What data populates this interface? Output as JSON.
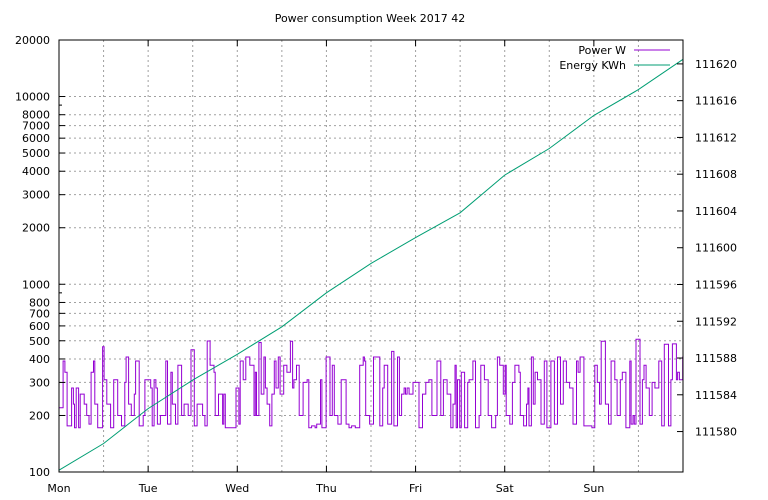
{
  "chart_data": {
    "type": "line",
    "title": "Power consumption Week 2017 42",
    "legend_position": "top-right",
    "grid": true,
    "x": {
      "range_days": [
        0,
        7
      ],
      "tick_labels": [
        "Mon",
        "Tue",
        "Wed",
        "Thu",
        "Fri",
        "Sat",
        "Sun"
      ]
    },
    "y_left": {
      "scale": "log",
      "range": [
        100,
        20000
      ],
      "ticks": [
        100,
        200,
        300,
        400,
        500,
        600,
        700,
        800,
        1000,
        2000,
        3000,
        4000,
        5000,
        6000,
        7000,
        8000,
        10000,
        20000
      ],
      "tick_labels": [
        "100",
        "200",
        "300",
        "400",
        "500",
        "600",
        "700",
        "800",
        "1000",
        "2000",
        "3000",
        "4000",
        "5000",
        "6000",
        "7000",
        "8000",
        "10000",
        "20000"
      ]
    },
    "y_right": {
      "scale": "linear",
      "range": [
        111575.6,
        111622.6
      ],
      "ticks": [
        111580,
        111584,
        111588,
        111592,
        111596,
        111600,
        111604,
        111608,
        111612,
        111616,
        111620
      ],
      "tick_labels": [
        "111580",
        "111584",
        "111588",
        "111592",
        "111596",
        "111600",
        "111604",
        "111608",
        "111612",
        "111616",
        "111620"
      ]
    },
    "series": [
      {
        "name": "Power W",
        "axis": "left",
        "color": "#9400d3",
        "pattern": "fluctuating step signal, mostly between 170 W and 400 W with occasional peaks up to about 510 W"
      },
      {
        "name": "Energy KWh",
        "axis": "right",
        "color": "#009e73",
        "x": [
          0,
          0.5,
          1,
          1.5,
          2,
          2.5,
          3,
          3.5,
          4,
          4.5,
          5,
          5.5,
          6,
          6.5,
          7
        ],
        "values": [
          111575.8,
          111578.7,
          111582.5,
          111585.6,
          111588.4,
          111591.4,
          111595.1,
          111598.3,
          111601.1,
          111603.8,
          111607.9,
          111610.8,
          111614.4,
          111617.2,
          111620.5
        ]
      }
    ]
  }
}
